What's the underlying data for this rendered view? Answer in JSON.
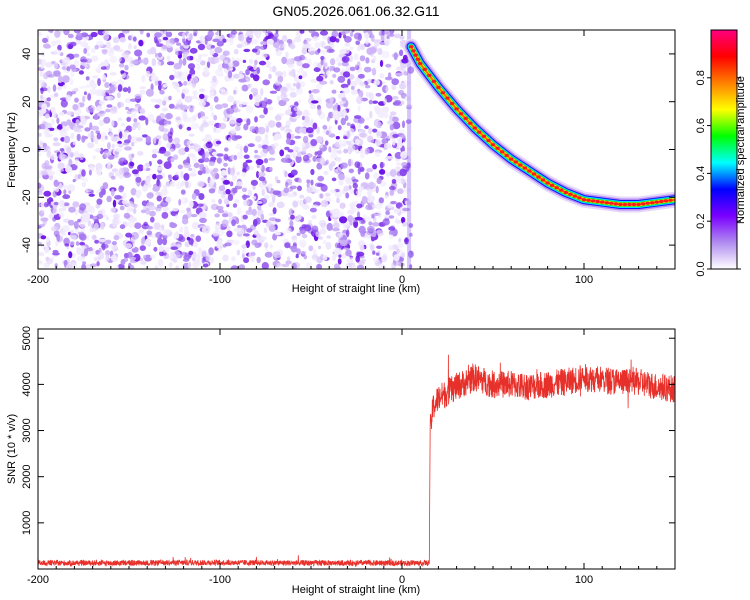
{
  "title": "GN05.2026.061.06.32.G11",
  "chart_data": [
    {
      "type": "heatmap",
      "xlabel": "Height of straight line (km)",
      "ylabel": "Frequency (Hz)",
      "xlim": [
        -200,
        150
      ],
      "ylim": [
        -50,
        50
      ],
      "x_ticks": [
        -200,
        -100,
        0,
        100
      ],
      "y_ticks": [
        -40,
        -20,
        0,
        20,
        40
      ],
      "noise_region_x": [
        -200,
        5
      ],
      "signal_track": {
        "x": [
          5,
          10,
          20,
          30,
          40,
          50,
          60,
          70,
          80,
          90,
          100,
          110,
          120,
          130,
          140,
          150
        ],
        "y": [
          43,
          36,
          26,
          17,
          9,
          2,
          -4,
          -9,
          -14,
          -18,
          -21,
          -22,
          -23,
          -23,
          -22,
          -21
        ]
      },
      "colorbar": {
        "label": "Normalized spectral amplitude",
        "range": [
          0,
          1
        ],
        "ticks": [
          0.0,
          0.2,
          0.4,
          0.6,
          0.8
        ],
        "colormap": [
          "#ffffff",
          "#b08cf0",
          "#7a00ff",
          "#0000ff",
          "#00ffff",
          "#00ff00",
          "#ffff00",
          "#ff8000",
          "#ff0000",
          "#ff0080"
        ]
      }
    },
    {
      "type": "line",
      "xlabel": "Height of straight line (km)",
      "ylabel": "SNR (10 * v/v)",
      "xlim": [
        -200,
        150
      ],
      "ylim": [
        0,
        5200
      ],
      "x_ticks": [
        -200,
        -100,
        0,
        100
      ],
      "y_ticks": [
        1000,
        2000,
        3000,
        4000,
        5000
      ],
      "color": "#e8302a",
      "series": [
        {
          "x": [
            -200,
            -150,
            -100,
            -50,
            0,
            15,
            15.5,
            17,
            20,
            30,
            40,
            50,
            60,
            70,
            80,
            90,
            100,
            110,
            120,
            130,
            140,
            150
          ],
          "values": [
            130,
            130,
            140,
            130,
            130,
            130,
            3000,
            3500,
            3700,
            3950,
            4150,
            4000,
            4000,
            3950,
            4000,
            4050,
            4150,
            4100,
            4050,
            4050,
            3950,
            3900
          ]
        }
      ]
    }
  ]
}
